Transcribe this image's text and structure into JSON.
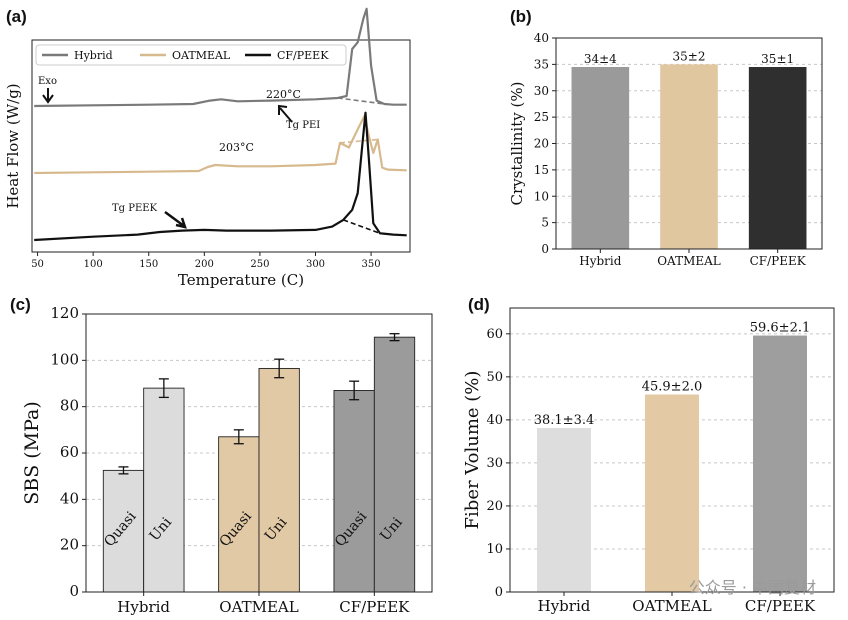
{
  "chart_data": [
    {
      "panel": "(a)",
      "type": "line",
      "xlabel": "Temperature (C)",
      "ylabel": "Heat Flow (W/g)",
      "xlim": [
        45,
        385
      ],
      "xticks": [
        50,
        100,
        150,
        200,
        250,
        300,
        350
      ],
      "legend_position": "top-left",
      "grid": false,
      "series": [
        {
          "name": "Hybrid",
          "color": "#7a7a7a",
          "offset": 2.0,
          "x": [
            47,
            100,
            150,
            190,
            205,
            215,
            230,
            260,
            300,
            320,
            328,
            333,
            338,
            343,
            346,
            350,
            355,
            362,
            370,
            382
          ],
          "y": [
            0,
            0.01,
            0.02,
            0.03,
            0.08,
            0.1,
            0.07,
            0.08,
            0.1,
            0.12,
            0.15,
            0.85,
            0.95,
            1.3,
            1.45,
            0.6,
            0.08,
            0.03,
            0.02,
            0.02
          ]
        },
        {
          "name": "OATMEAL",
          "color": "#d7b98e",
          "offset": 1.0,
          "x": [
            47,
            100,
            150,
            195,
            203,
            210,
            230,
            260,
            300,
            318,
            322,
            330,
            338,
            344,
            348,
            352,
            356,
            360,
            365,
            382
          ],
          "y": [
            0,
            0.01,
            0.02,
            0.03,
            0.09,
            0.12,
            0.1,
            0.1,
            0.12,
            0.14,
            0.45,
            0.38,
            0.65,
            0.85,
            0.55,
            0.3,
            0.5,
            0.08,
            0.05,
            0.04
          ]
        },
        {
          "name": "CF/PEEK",
          "color": "#111111",
          "offset": 0.0,
          "x": [
            47,
            100,
            140,
            160,
            180,
            200,
            220,
            260,
            300,
            315,
            325,
            333,
            338,
            342,
            345,
            348,
            352,
            358,
            370,
            382
          ],
          "y": [
            0,
            0.05,
            0.08,
            0.12,
            0.14,
            0.15,
            0.14,
            0.14,
            0.15,
            0.2,
            0.3,
            0.45,
            0.7,
            1.4,
            1.9,
            1.2,
            0.25,
            0.1,
            0.08,
            0.07
          ]
        }
      ],
      "annotations": [
        {
          "text": "Exo"
        },
        {
          "text": "220°C"
        },
        {
          "text": "Tg PEI"
        },
        {
          "text": "203°C"
        },
        {
          "text": "Tg PEEK"
        }
      ]
    },
    {
      "panel": "(b)",
      "type": "bar",
      "ylabel": "Crystallinity (%)",
      "categories": [
        "Hybrid",
        "OATMEAL",
        "CF/PEEK"
      ],
      "values": [
        34.5,
        35,
        34.5
      ],
      "value_labels": [
        "34±4",
        "35±2",
        "35±1"
      ],
      "colors": [
        "#9a9a9a",
        "#e0c7a0",
        "#2f2f2f"
      ],
      "ylim": [
        0,
        40
      ],
      "yticks": [
        0,
        5,
        10,
        15,
        20,
        25,
        30,
        35,
        40
      ],
      "grid": "horizontal dashed"
    },
    {
      "panel": "(c)",
      "type": "bar",
      "ylabel": "SBS (MPa)",
      "categories": [
        "Hybrid",
        "OATMEAL",
        "CF/PEEK"
      ],
      "bar_labels": [
        "Quasi",
        "Uni"
      ],
      "series": [
        {
          "values": [
            52.5,
            67,
            87
          ],
          "errors": [
            1.5,
            3,
            4
          ],
          "colors": [
            "#dcdcdc",
            "#e2c9a5",
            "#9b9b9b"
          ]
        },
        {
          "values": [
            88,
            96.5,
            110
          ],
          "errors": [
            4,
            4,
            1.5
          ],
          "colors": [
            "#dcdcdc",
            "#e2c9a5",
            "#9b9b9b"
          ]
        }
      ],
      "ylim": [
        0,
        120
      ],
      "yticks": [
        0,
        20,
        40,
        60,
        80,
        100,
        120
      ],
      "grid": "horizontal dashed"
    },
    {
      "panel": "(d)",
      "type": "bar",
      "ylabel": "Fiber Volume (%)",
      "categories": [
        "Hybrid",
        "OATMEAL",
        "CF/PEEK"
      ],
      "values": [
        38.1,
        45.9,
        59.6
      ],
      "value_labels": [
        "38.1±3.4",
        "45.9±2.0",
        "59.6±2.1"
      ],
      "colors": [
        "#dddddd",
        "#e3c9a4",
        "#9e9e9e"
      ],
      "ylim": [
        0,
        66
      ],
      "yticks": [
        0,
        10,
        20,
        30,
        40,
        50,
        60
      ],
      "grid": "horizontal dashed"
    }
  ],
  "watermark": "公众号 · 中国复材"
}
